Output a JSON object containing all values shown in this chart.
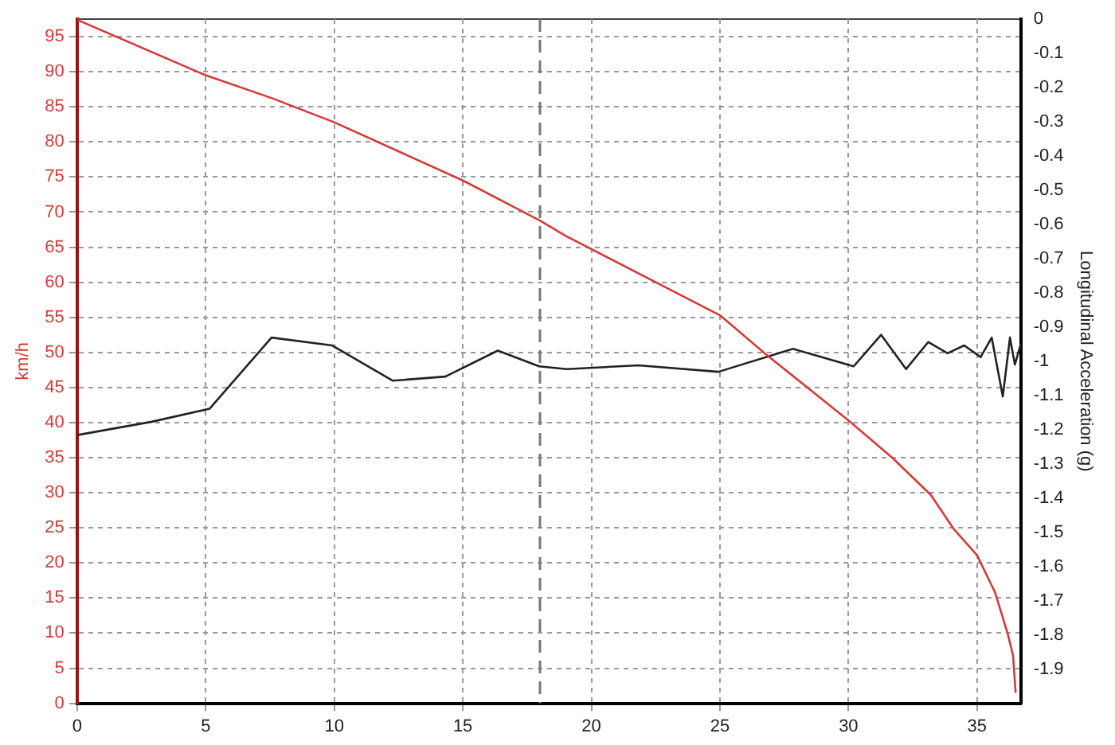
{
  "chart_data": {
    "type": "line",
    "ylabel": "km/h",
    "y2label": "Longitudinal Acceleration (g)",
    "xlim": [
      0,
      36.7
    ],
    "xticks": [
      0,
      5,
      10,
      15,
      20,
      25,
      30,
      35
    ],
    "ylim": [
      0,
      97.5
    ],
    "yticks": [
      0,
      5,
      10,
      15,
      20,
      25,
      30,
      35,
      40,
      45,
      50,
      55,
      60,
      65,
      70,
      75,
      80,
      85,
      90,
      95
    ],
    "y2lim": [
      -2,
      0
    ],
    "y2ticks": [
      0,
      -0.1,
      -0.2,
      -0.3,
      -0.4,
      -0.5,
      -0.6,
      -0.7,
      -0.8,
      -0.9,
      -1,
      -1.1,
      -1.2,
      -1.3,
      -1.4,
      -1.5,
      -1.6,
      -1.7,
      -1.8,
      -1.9
    ],
    "series": [
      {
        "color": "#d43a3a",
        "x": [
          0,
          5,
          7.6,
          10,
          15,
          18,
          19,
          25,
          26.8,
          30,
          31.7,
          33.2,
          34.1,
          35,
          35.7,
          36.2,
          36.4,
          36.5
        ],
        "values": [
          97.4,
          89.5,
          86.2,
          82.8,
          74.5,
          68.8,
          66.6,
          55.3,
          49.7,
          40.3,
          35,
          29.7,
          24.8,
          21.1,
          15.8,
          9.8,
          6.8,
          1.5
        ]
      },
      {
        "color": "#222222",
        "axis": "y2",
        "x": [
          0,
          2.9,
          5.15,
          7.56,
          9.92,
          12.28,
          14.32,
          16.36,
          17.97,
          19.04,
          21.83,
          24.94,
          27.84,
          30.2,
          31.27,
          32.24,
          33.1,
          33.85,
          34.5,
          35.14,
          35.57,
          36,
          36.28,
          36.47,
          36.7
        ],
        "values": [
          -1.216,
          -1.177,
          -1.139,
          -0.931,
          -0.954,
          -1.057,
          -1.045,
          -0.969,
          -1.015,
          -1.023,
          -1.012,
          -1.031,
          -0.964,
          -1.015,
          -0.923,
          -1.023,
          -0.944,
          -0.977,
          -0.954,
          -0.988,
          -0.931,
          -1.103,
          -0.931,
          -1.01,
          -0.95
        ]
      }
    ],
    "ref_lines": [
      {
        "axis": "x",
        "value": 18,
        "color": "#777777",
        "line_style": "dashed"
      }
    ],
    "grid": true,
    "line_style": "solid",
    "marker": "none"
  }
}
